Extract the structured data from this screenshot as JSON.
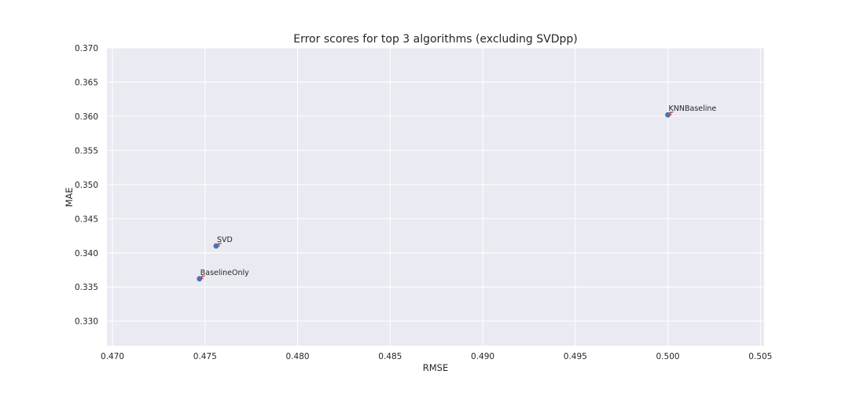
{
  "chart_data": {
    "type": "scatter",
    "title": "Error scores for top 3 algorithms (excluding SVDpp)",
    "xlabel": "RMSE",
    "ylabel": "MAE",
    "xlim": [
      0.4697,
      0.5052
    ],
    "ylim": [
      0.3264,
      0.37
    ],
    "xticks": [
      "0.470",
      "0.475",
      "0.480",
      "0.485",
      "0.490",
      "0.495",
      "0.500",
      "0.505"
    ],
    "yticks": [
      "0.330",
      "0.335",
      "0.340",
      "0.345",
      "0.350",
      "0.355",
      "0.360",
      "0.365",
      "0.370"
    ],
    "grid": true,
    "points": [
      {
        "label": "BaselineOnly",
        "x": 0.4747,
        "y": 0.3362
      },
      {
        "label": "SVD",
        "x": 0.4756,
        "y": 0.341
      },
      {
        "label": "KNNBaseline",
        "x": 0.5,
        "y": 0.3602
      }
    ],
    "colors": {
      "background": "#eaeaf2",
      "grid": "#ffffff",
      "point": "#4c72b0",
      "annotation_arrow": "#c0392b"
    }
  }
}
